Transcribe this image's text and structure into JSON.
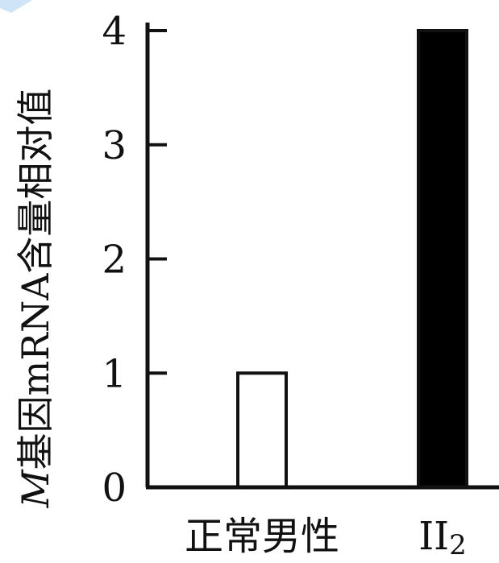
{
  "chart_data": {
    "type": "bar",
    "title": "",
    "xlabel": "",
    "ylabel": "M基因mRNA含量相对值",
    "ylabel_italic_prefix": "M",
    "ylabel_rest": "基因mRNA含量相对值",
    "categories": [
      "正常男性",
      "II2"
    ],
    "category_labels": [
      {
        "main": "正常男性",
        "sub": ""
      },
      {
        "main": "II",
        "sub": "2"
      }
    ],
    "values": [
      1,
      4
    ],
    "bar_fills": [
      "#ffffff",
      "#000000"
    ],
    "ylim": [
      0,
      4
    ],
    "yticks": [
      0,
      1,
      2,
      3,
      4
    ],
    "ytick_labels": [
      "0",
      "1",
      "2",
      "3",
      "4"
    ],
    "grid": false,
    "legend": false
  },
  "colors": {
    "axis": "#111111",
    "corner_accent": "#cfe4f7"
  }
}
